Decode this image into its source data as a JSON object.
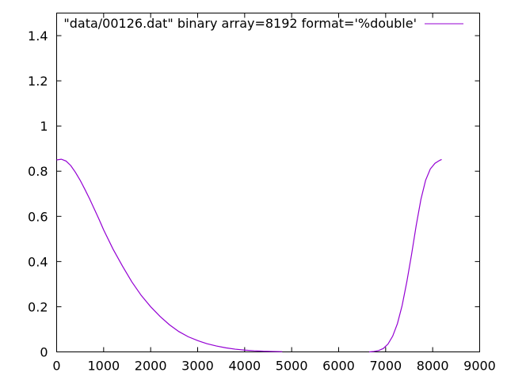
{
  "chart_data": {
    "type": "line",
    "title": "",
    "xlabel": "",
    "ylabel": "",
    "xlim": [
      0,
      9000
    ],
    "ylim": [
      0,
      1.5
    ],
    "x_ticks": [
      0,
      1000,
      2000,
      3000,
      4000,
      5000,
      6000,
      7000,
      8000,
      9000
    ],
    "y_ticks": [
      0,
      0.2,
      0.4,
      0.6,
      0.8,
      1,
      1.2,
      1.4
    ],
    "grid": false,
    "legend_position": "top-right",
    "series": [
      {
        "name": "\"data/00126.dat\" binary array=8192 format='%double'",
        "color": "#9400d3",
        "x": [
          0,
          100,
          200,
          300,
          400,
          500,
          600,
          700,
          800,
          900,
          1000,
          1200,
          1400,
          1600,
          1800,
          2000,
          2200,
          2400,
          2600,
          2800,
          3000,
          3200,
          3400,
          3600,
          3800,
          4000,
          4200,
          4400,
          4600,
          4800,
          6650,
          6750,
          6850,
          6950,
          7050,
          7150,
          7250,
          7350,
          7450,
          7550,
          7650,
          7750,
          7850,
          7950,
          8050,
          8150,
          8191
        ],
        "y": [
          0.85,
          0.853,
          0.845,
          0.825,
          0.795,
          0.76,
          0.72,
          0.678,
          0.633,
          0.588,
          0.54,
          0.455,
          0.38,
          0.31,
          0.25,
          0.2,
          0.157,
          0.12,
          0.09,
          0.067,
          0.05,
          0.036,
          0.026,
          0.018,
          0.012,
          0.008,
          0.005,
          0.003,
          0.002,
          0.001,
          0.0,
          0.002,
          0.006,
          0.015,
          0.035,
          0.07,
          0.125,
          0.205,
          0.31,
          0.43,
          0.56,
          0.675,
          0.76,
          0.81,
          0.835,
          0.848,
          0.852
        ]
      }
    ]
  }
}
